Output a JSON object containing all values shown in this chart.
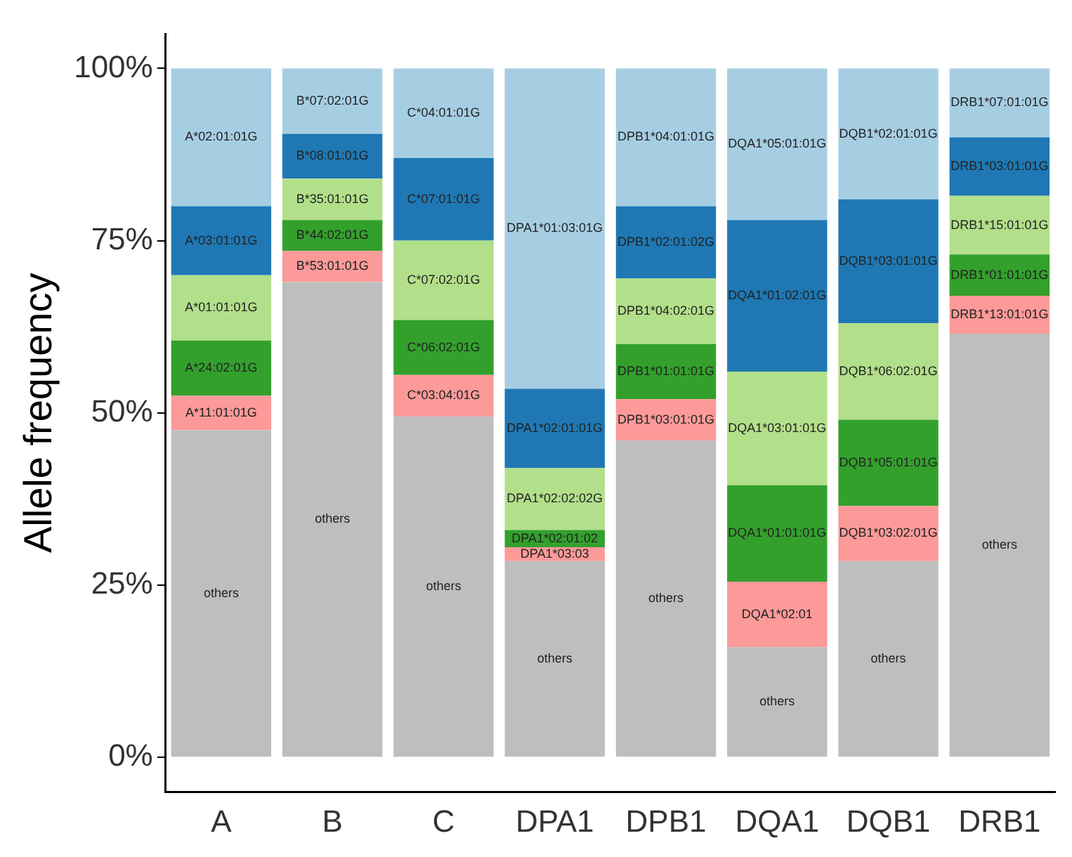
{
  "chart_data": {
    "type": "bar",
    "stacked": true,
    "ylabel": "Allele frequency",
    "categories": [
      "A",
      "B",
      "C",
      "DPA1",
      "DPB1",
      "DQA1",
      "DQB1",
      "DRB1"
    ],
    "series": [
      {
        "color": "#bebebe",
        "values": [
          47.5,
          69,
          49.5,
          28.5,
          46,
          16,
          28.5,
          61.5
        ],
        "value_labels": [
          "others",
          "others",
          "others",
          "others",
          "others",
          "others",
          "others",
          "others"
        ]
      },
      {
        "color": "#fb9a99",
        "values": [
          5,
          4.5,
          6,
          2,
          6,
          9.5,
          8,
          5.5
        ],
        "value_labels": [
          "A*11:01:01G",
          "B*53:01:01G",
          "C*03:04:01G",
          "DPA1*03:03",
          "DPB1*03:01:01G",
          "DQA1*02:01",
          "DQB1*03:02:01G",
          "DRB1*13:01:01G"
        ]
      },
      {
        "color": "#33a02c",
        "values": [
          8,
          4.5,
          8,
          2.5,
          8,
          14,
          12.5,
          6
        ],
        "value_labels": [
          "A*24:02:01G",
          "B*44:02:01G",
          "C*06:02:01G",
          "DPA1*02:01:02",
          "DPB1*01:01:01G",
          "DQA1*01:01:01G",
          "DQB1*05:01:01G",
          "DRB1*01:01:01G"
        ]
      },
      {
        "color": "#b2df8a",
        "values": [
          9.5,
          6,
          11.5,
          9,
          9.5,
          16.5,
          14,
          8.5
        ],
        "value_labels": [
          "A*01:01:01G",
          "B*35:01:01G",
          "C*07:02:01G",
          "DPA1*02:02:02G",
          "DPB1*04:02:01G",
          "DQA1*03:01:01G",
          "DQB1*06:02:01G",
          "DRB1*15:01:01G"
        ]
      },
      {
        "color": "#1f78b4",
        "values": [
          10,
          6.5,
          12,
          11.5,
          10.5,
          22,
          18,
          8.5
        ],
        "value_labels": [
          "A*03:01:01G",
          "B*08:01:01G",
          "C*07:01:01G",
          "DPA1*02:01:01G",
          "DPB1*02:01:02G",
          "DQA1*01:02:01G",
          "DQB1*03:01:01G",
          "DRB1*03:01:01G"
        ]
      },
      {
        "color": "#a6cee3",
        "values": [
          20,
          9.5,
          13,
          46.5,
          20,
          22,
          19,
          10
        ],
        "value_labels": [
          "A*02:01:01G",
          "B*07:02:01G",
          "C*04:01:01G",
          "DPA1*01:03:01G",
          "DPB1*04:01:01G",
          "DQA1*05:01:01G",
          "DQB1*02:01:01G",
          "DRB1*07:01:01G"
        ]
      }
    ],
    "ylim": [
      -5,
      105
    ],
    "yticks": [
      {
        "value": 0,
        "label": "0%"
      },
      {
        "value": 25,
        "label": "25%"
      },
      {
        "value": 50,
        "label": "50%"
      },
      {
        "value": 75,
        "label": "75%"
      },
      {
        "value": 100,
        "label": "100%"
      }
    ],
    "grid": false,
    "legend": false
  }
}
